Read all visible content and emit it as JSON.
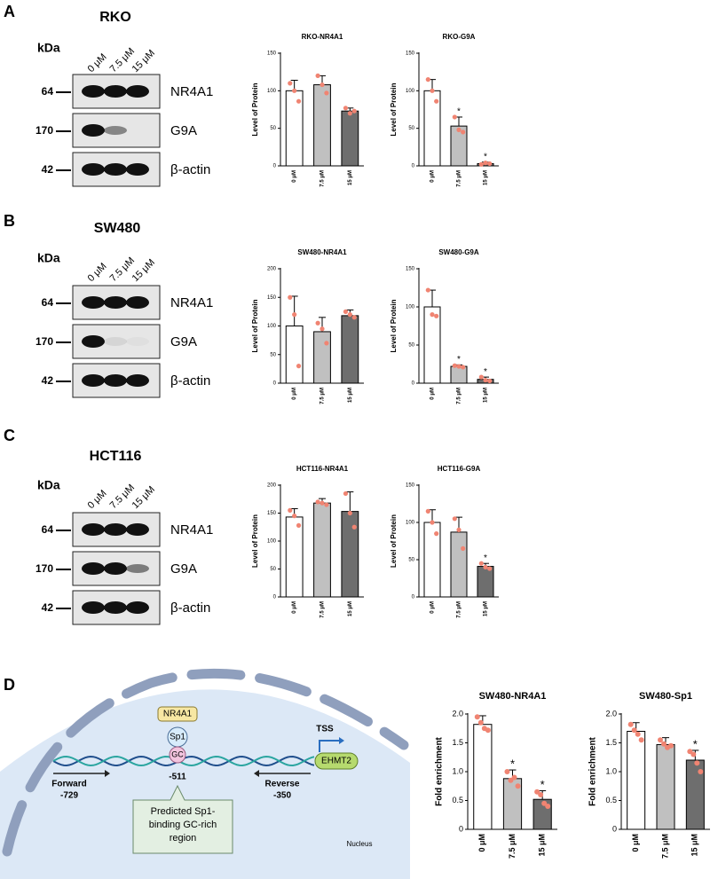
{
  "panels": [
    {
      "letter": "A",
      "cell": "RKO",
      "kda": "kDa",
      "lanes": [
        "0 μM",
        "7.5 μM",
        "15 μM"
      ],
      "rows": [
        {
          "mw": "64",
          "name": "NR4A1"
        },
        {
          "mw": "170",
          "name": "G9A"
        },
        {
          "mw": "42",
          "name": "β-actin"
        }
      ]
    },
    {
      "letter": "B",
      "cell": "SW480",
      "kda": "kDa",
      "lanes": [
        "0 μM",
        "7.5 μM",
        "15 μM"
      ],
      "rows": [
        {
          "mw": "64",
          "name": "NR4A1"
        },
        {
          "mw": "170",
          "name": "G9A"
        },
        {
          "mw": "42",
          "name": "β-actin"
        }
      ]
    },
    {
      "letter": "C",
      "cell": "HCT116",
      "kda": "kDa",
      "lanes": [
        "0 μM",
        "7.5 μM",
        "15 μM"
      ],
      "rows": [
        {
          "mw": "64",
          "name": "NR4A1"
        },
        {
          "mw": "170",
          "name": "G9A"
        },
        {
          "mw": "42",
          "name": "β-actin"
        }
      ]
    },
    {
      "letter": "D"
    }
  ],
  "diagram": {
    "protein1": "NR4A1",
    "protein2": "Sp1",
    "site": "GC",
    "tss": "TSS",
    "gene": "EHMT2",
    "forward": "Forward",
    "forward_pos": "-729",
    "site_pos": "-511",
    "reverse": "Reverse",
    "reverse_pos": "-350",
    "callout": [
      "Predicted Sp1-",
      "binding GC-rich",
      "region"
    ],
    "compartment": "Nucleus"
  },
  "chart_data": [
    {
      "type": "bar",
      "title": "RKO-NR4A1",
      "ylabel": "Level of Protein",
      "categories": [
        "0 μM",
        "7.5 μM",
        "15 μM"
      ],
      "values": [
        100,
        108,
        73
      ],
      "errors": [
        14,
        12,
        4
      ],
      "points": [
        [
          110,
          100,
          86
        ],
        [
          120,
          108,
          97
        ],
        [
          77,
          70,
          73
        ]
      ],
      "value_annotations": [
        null,
        null,
        null
      ],
      "colors": [
        "#ffffff",
        "#c0c0c0",
        "#6e6e6e"
      ],
      "point_color": "#f08472",
      "ylim": [
        0,
        150
      ],
      "yticks": [
        0,
        50,
        100,
        150
      ]
    },
    {
      "type": "bar",
      "title": "RKO-G9A",
      "ylabel": "Level of Protein",
      "categories": [
        "0 μM",
        "7.5 μM",
        "15 μM"
      ],
      "values": [
        100,
        53,
        3
      ],
      "errors": [
        15,
        12,
        2
      ],
      "points": [
        [
          115,
          100,
          86
        ],
        [
          65,
          48,
          45
        ],
        [
          2,
          4,
          3
        ]
      ],
      "value_annotations": [
        null,
        "*",
        "*"
      ],
      "colors": [
        "#ffffff",
        "#c0c0c0",
        "#6e6e6e"
      ],
      "point_color": "#f08472",
      "ylim": [
        0,
        150
      ],
      "yticks": [
        0,
        50,
        100,
        150
      ]
    },
    {
      "type": "bar",
      "title": "SW480-NR4A1",
      "ylabel": "Level of Protein",
      "categories": [
        "0 μM",
        "7.5 μM",
        "15 μM"
      ],
      "values": [
        100,
        90,
        118
      ],
      "errors": [
        52,
        25,
        10
      ],
      "points": [
        [
          150,
          120,
          30
        ],
        [
          105,
          95,
          70
        ],
        [
          125,
          120,
          115
        ]
      ],
      "value_annotations": [
        null,
        null,
        null
      ],
      "colors": [
        "#ffffff",
        "#c0c0c0",
        "#6e6e6e"
      ],
      "point_color": "#f08472",
      "ylim": [
        0,
        200
      ],
      "yticks": [
        0,
        50,
        100,
        150,
        200
      ]
    },
    {
      "type": "bar",
      "title": "SW480-G9A",
      "ylabel": "Level of Protein",
      "categories": [
        "0 μM",
        "7.5 μM",
        "15 μM"
      ],
      "values": [
        100,
        22,
        5
      ],
      "errors": [
        22,
        2,
        3
      ],
      "points": [
        [
          122,
          90,
          88
        ],
        [
          23,
          22,
          21
        ],
        [
          8,
          4,
          3
        ]
      ],
      "value_annotations": [
        null,
        "*",
        "*"
      ],
      "colors": [
        "#ffffff",
        "#c0c0c0",
        "#6e6e6e"
      ],
      "point_color": "#f08472",
      "ylim": [
        0,
        150
      ],
      "yticks": [
        0,
        50,
        100,
        150
      ]
    },
    {
      "type": "bar",
      "title": "HCT116-NR4A1",
      "ylabel": "Level of Protein",
      "categories": [
        "0 μM",
        "7.5 μM",
        "15 μM"
      ],
      "values": [
        143,
        168,
        153
      ],
      "errors": [
        15,
        8,
        35
      ],
      "points": [
        [
          155,
          145,
          128
        ],
        [
          170,
          168,
          165
        ],
        [
          185,
          150,
          125
        ]
      ],
      "value_annotations": [
        null,
        null,
        null
      ],
      "colors": [
        "#ffffff",
        "#c0c0c0",
        "#6e6e6e"
      ],
      "point_color": "#f08472",
      "ylim": [
        0,
        200
      ],
      "yticks": [
        0,
        50,
        100,
        150,
        200
      ]
    },
    {
      "type": "bar",
      "title": "HCT116-G9A",
      "ylabel": "Level of Protein",
      "categories": [
        "0 μM",
        "7.5 μM",
        "15 μM"
      ],
      "values": [
        100,
        87,
        41
      ],
      "errors": [
        17,
        20,
        4
      ],
      "points": [
        [
          115,
          100,
          85
        ],
        [
          105,
          90,
          65
        ],
        [
          45,
          40,
          38
        ]
      ],
      "value_annotations": [
        null,
        null,
        "*"
      ],
      "colors": [
        "#ffffff",
        "#c0c0c0",
        "#6e6e6e"
      ],
      "point_color": "#f08472",
      "ylim": [
        0,
        150
      ],
      "yticks": [
        0,
        50,
        100,
        150
      ]
    },
    {
      "type": "bar",
      "title": "SW480-NR4A1",
      "ylabel": "Fold enrichment",
      "categories": [
        "0 μM",
        "7.5 μM",
        "15 μM"
      ],
      "values": [
        1.82,
        0.88,
        0.52
      ],
      "errors": [
        0.15,
        0.15,
        0.15
      ],
      "points": [
        [
          1.95,
          1.85,
          1.75,
          1.72
        ],
        [
          1.0,
          0.85,
          0.9,
          0.75
        ],
        [
          0.65,
          0.6,
          0.45,
          0.4
        ]
      ],
      "value_annotations": [
        null,
        "*",
        "*"
      ],
      "colors": [
        "#ffffff",
        "#c0c0c0",
        "#6e6e6e"
      ],
      "point_color": "#f08472",
      "ylim": [
        0,
        2.0
      ],
      "yticks": [
        0,
        0.5,
        {
          "value": 1,
          "label": "1.0"
        },
        1.5,
        {
          "value": 2,
          "label": "2.0"
        }
      ]
    },
    {
      "type": "bar",
      "title": "SW480-Sp1",
      "ylabel": "Fold enrichment",
      "categories": [
        "0 μM",
        "7.5 μM",
        "15 μM"
      ],
      "values": [
        1.7,
        1.47,
        1.2
      ],
      "errors": [
        0.15,
        0.12,
        0.17
      ],
      "points": [
        [
          1.82,
          1.72,
          1.65,
          1.55
        ],
        [
          1.55,
          1.48,
          1.42,
          1.45
        ],
        [
          1.35,
          1.3,
          1.15,
          1.0
        ]
      ],
      "value_annotations": [
        null,
        null,
        "*"
      ],
      "colors": [
        "#ffffff",
        "#c0c0c0",
        "#6e6e6e"
      ],
      "point_color": "#f08472",
      "ylim": [
        0,
        2.0
      ],
      "yticks": [
        0,
        0.5,
        {
          "value": 1,
          "label": "1.0"
        },
        1.5,
        {
          "value": 2,
          "label": "2.0"
        }
      ]
    }
  ]
}
